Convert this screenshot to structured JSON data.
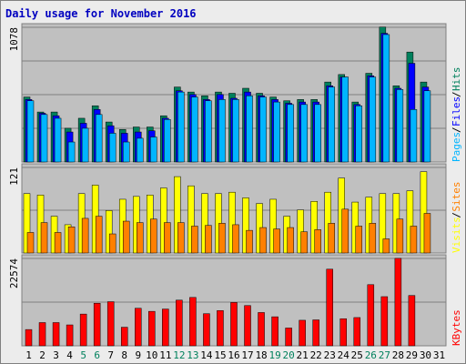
{
  "chart_data": [
    {
      "type": "bar",
      "title": "Daily usage for November 2016",
      "ylabel_parts": [
        "Pages",
        "Files",
        "Hits"
      ],
      "ytick_label": "1078",
      "ylim": [
        0,
        1078
      ],
      "categories": [
        "1",
        "2",
        "3",
        "4",
        "5",
        "6",
        "7",
        "8",
        "9",
        "10",
        "11",
        "12",
        "13",
        "14",
        "15",
        "16",
        "17",
        "18",
        "19",
        "20",
        "21",
        "22",
        "23",
        "24",
        "25",
        "26",
        "27",
        "28",
        "29",
        "30",
        "31"
      ],
      "series": [
        {
          "name": "Hits",
          "color": "#00805c",
          "values": [
            520,
            400,
            400,
            270,
            350,
            450,
            320,
            260,
            280,
            280,
            370,
            600,
            560,
            530,
            560,
            550,
            590,
            550,
            520,
            490,
            500,
            500,
            640,
            700,
            480,
            710,
            1080,
            610,
            880,
            640,
            0
          ]
        },
        {
          "name": "Files",
          "color": "#0000ff",
          "values": [
            500,
            390,
            370,
            240,
            310,
            420,
            290,
            230,
            240,
            250,
            350,
            570,
            540,
            500,
            540,
            510,
            560,
            530,
            500,
            470,
            480,
            480,
            610,
            680,
            460,
            690,
            1030,
            590,
            790,
            600,
            0
          ]
        },
        {
          "name": "Pages",
          "color": "#00b5ff",
          "values": [
            490,
            380,
            350,
            160,
            270,
            380,
            230,
            160,
            190,
            200,
            340,
            560,
            520,
            490,
            500,
            500,
            530,
            520,
            480,
            460,
            460,
            460,
            600,
            680,
            450,
            680,
            1020,
            580,
            420,
            570,
            0
          ]
        }
      ]
    },
    {
      "type": "bar",
      "ylabel_parts": [
        "Visits",
        "Sites"
      ],
      "ytick_label": "121",
      "ylim": [
        0,
        121
      ],
      "series": [
        {
          "name": "Visits",
          "color": "#ffff00",
          "values": [
            84,
            82,
            52,
            40,
            84,
            96,
            60,
            76,
            80,
            82,
            92,
            108,
            95,
            84,
            84,
            86,
            78,
            70,
            76,
            52,
            61,
            73,
            86,
            106,
            72,
            79,
            84,
            84,
            88,
            115,
            0
          ]
        },
        {
          "name": "Sites",
          "color": "#ff8000",
          "values": [
            29,
            43,
            29,
            37,
            49,
            52,
            27,
            45,
            43,
            48,
            43,
            43,
            38,
            39,
            42,
            40,
            32,
            36,
            34,
            36,
            30,
            33,
            42,
            62,
            38,
            42,
            20,
            48,
            38,
            56,
            0
          ]
        }
      ]
    },
    {
      "type": "bar",
      "ylabel_parts": [
        "KBytes"
      ],
      "ytick_label": "22574",
      "ylim": [
        0,
        22574
      ],
      "series": [
        {
          "name": "KBytes",
          "color": "#ff0000",
          "values": [
            4200,
            6000,
            6000,
            5400,
            8200,
            11000,
            11400,
            4800,
            9700,
            8900,
            9500,
            11800,
            12500,
            8300,
            9100,
            11200,
            10400,
            8600,
            7500,
            4600,
            6600,
            6700,
            19800,
            7000,
            7300,
            15800,
            12700,
            22600,
            13000,
            0,
            0
          ]
        }
      ]
    }
  ],
  "x_labels": [
    "1",
    "2",
    "3",
    "4",
    "5",
    "6",
    "7",
    "8",
    "9",
    "10",
    "11",
    "12",
    "13",
    "14",
    "15",
    "16",
    "17",
    "18",
    "19",
    "20",
    "21",
    "22",
    "23",
    "24",
    "25",
    "26",
    "27",
    "28",
    "29",
    "30",
    "31"
  ],
  "weekend_days": [
    5,
    6,
    12,
    13,
    19,
    20,
    26,
    27
  ],
  "colors": {
    "background": "#ececec",
    "panel": "#c0c0c0",
    "title": "#0000c0",
    "label": "#000000",
    "weekend_label": "#00805c",
    "gridline": "#808080",
    "hits": "#00805c",
    "files": "#0000ff",
    "pages": "#00b5ff",
    "visits": "#ffff00",
    "sites": "#ff8000",
    "kbytes": "#ff0000"
  }
}
